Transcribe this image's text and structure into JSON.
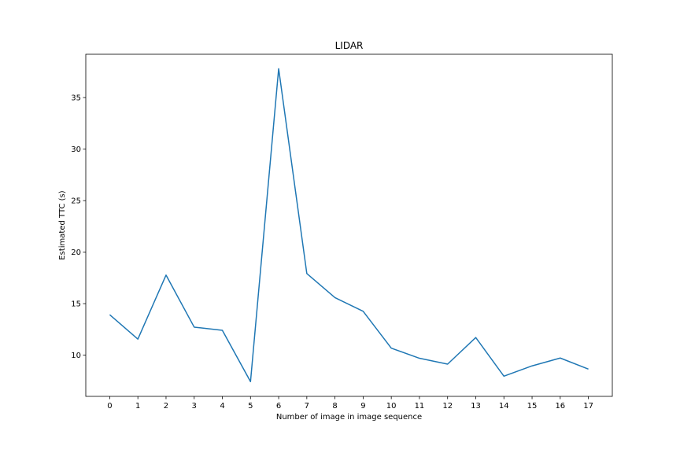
{
  "chart_data": {
    "type": "line",
    "title": "LIDAR",
    "xlabel": "Number of image in image sequence",
    "ylabel": "Estimated TTC (s)",
    "x": [
      0,
      1,
      2,
      3,
      4,
      5,
      6,
      7,
      8,
      9,
      10,
      11,
      12,
      13,
      14,
      15,
      16,
      17
    ],
    "xticks": [
      "0",
      "1",
      "2",
      "3",
      "4",
      "5",
      "6",
      "7",
      "8",
      "9",
      "10",
      "11",
      "12",
      "13",
      "14",
      "15",
      "16",
      "17"
    ],
    "yticks": [
      "10",
      "15",
      "20",
      "25",
      "30",
      "35"
    ],
    "xlim": [
      -0.85,
      17.85
    ],
    "ylim": [
      6.0,
      39.2
    ],
    "grid": false,
    "series": [
      {
        "color": "#1f77b4",
        "values": [
          13.92,
          11.56,
          17.77,
          12.72,
          12.41,
          7.43,
          37.8,
          17.92,
          15.58,
          14.26,
          10.68,
          9.7,
          9.13,
          11.71,
          7.96,
          8.96,
          9.72,
          8.65
        ]
      }
    ]
  }
}
